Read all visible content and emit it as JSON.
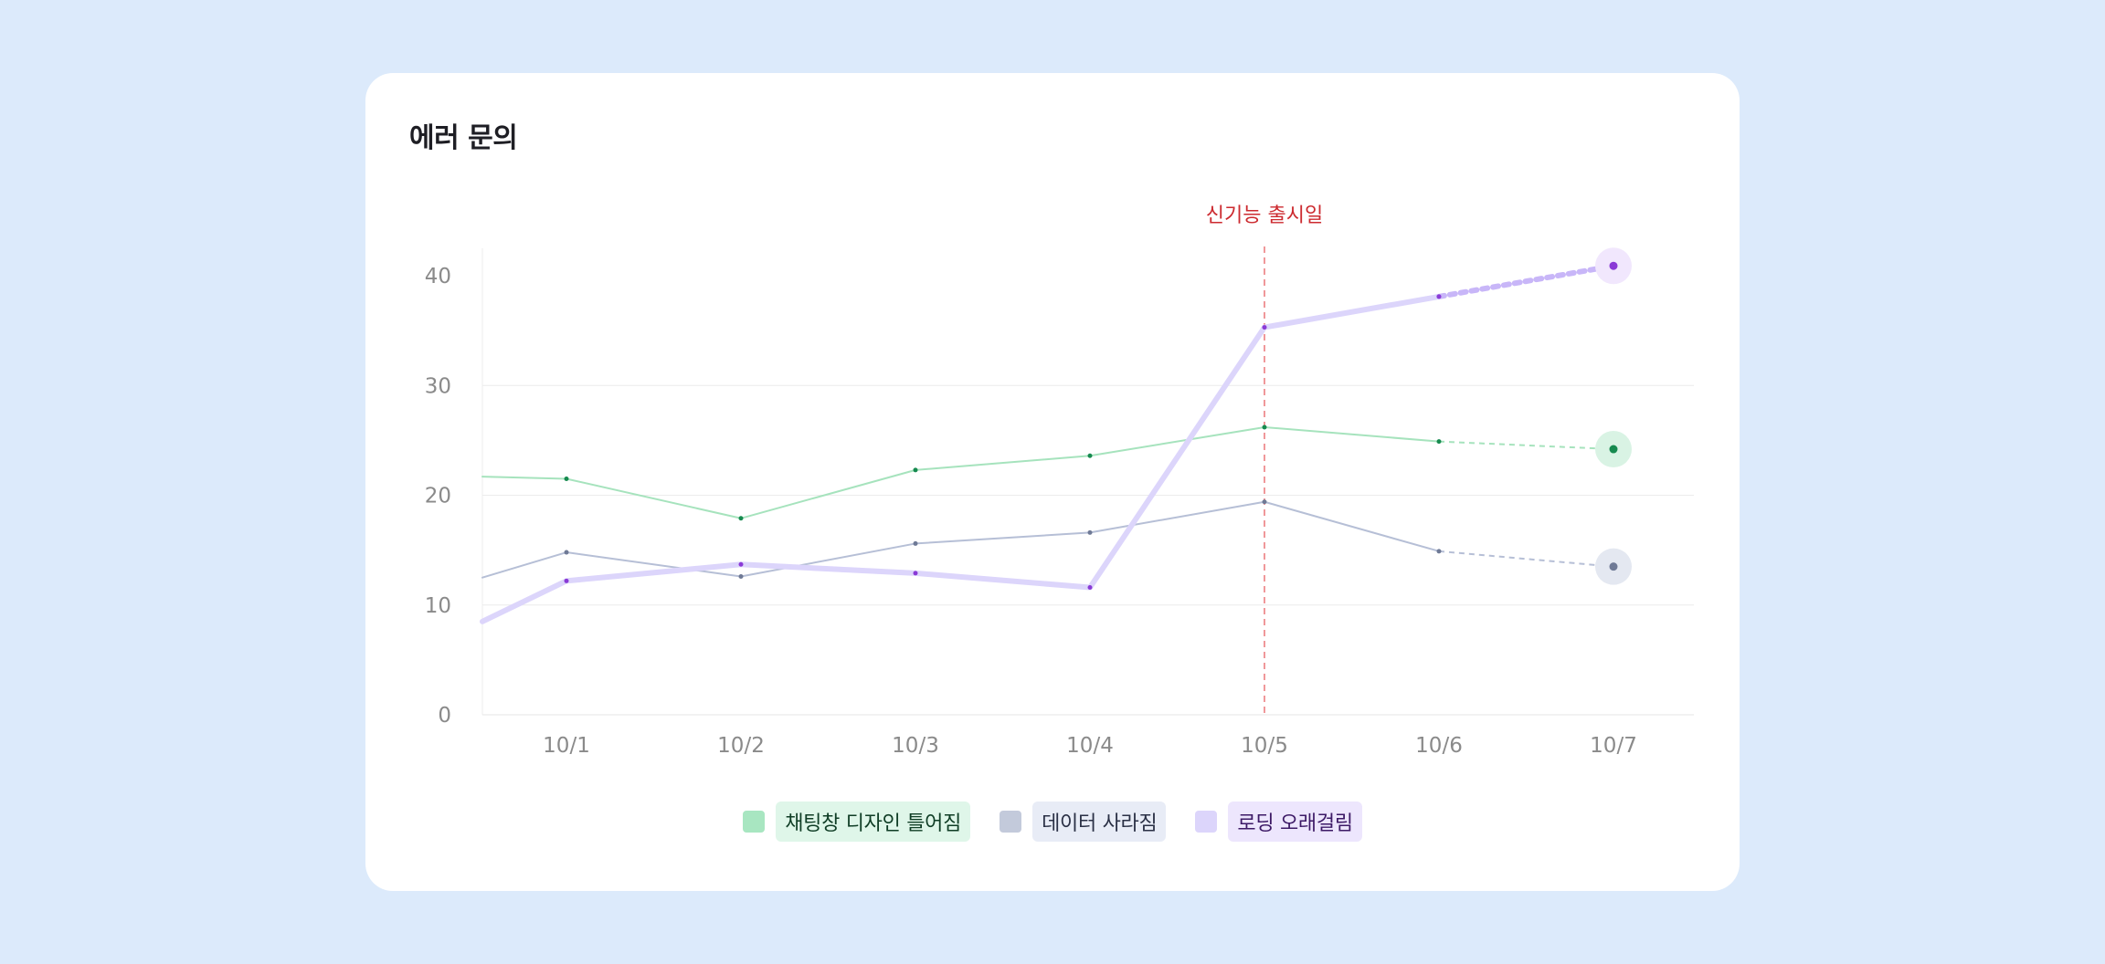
{
  "card": {
    "title": "에러 문의"
  },
  "chart_data": {
    "type": "line",
    "title": "에러 문의",
    "categories": [
      "10/1",
      "10/2",
      "10/3",
      "10/4",
      "10/5",
      "10/6",
      "10/7"
    ],
    "yticks": [
      0,
      10,
      20,
      30,
      40
    ],
    "ylim": [
      0,
      42.5
    ],
    "grid": "horizontal",
    "legend_position": "bottom-center",
    "annotation": {
      "label": "신기능 출시일",
      "x": "10/5",
      "color": "#e5484d"
    },
    "series": [
      {
        "name": "채팅창 디자인 틀어짐",
        "start_value": 21.7,
        "values": [
          21.5,
          17.9,
          22.3,
          23.6,
          26.2,
          24.9,
          24.2
        ],
        "projected_from": "10/6",
        "line_color": "#a6e3bd",
        "dot_color": "#168a4f",
        "halo_color": "#d9f3e4",
        "chip_bg": "#dff6e9",
        "chip_text": "#0f3d25",
        "swatch": "#a8e6c1",
        "width": 2
      },
      {
        "name": "데이터 사라짐",
        "start_value": 12.5,
        "values": [
          14.8,
          12.6,
          15.6,
          16.6,
          19.4,
          14.9,
          13.5
        ],
        "projected_from": "10/6",
        "line_color": "#b6bfd6",
        "dot_color": "#6f7a96",
        "halo_color": "#e4e8f1",
        "chip_bg": "#e8ecf6",
        "chip_text": "#2a3045",
        "swatch": "#c3cadb",
        "width": 2
      },
      {
        "name": "로딩 오래걸림",
        "start_value": 8.5,
        "values": [
          12.2,
          13.7,
          12.9,
          11.6,
          35.3,
          38.1,
          40.9
        ],
        "projected_from": "10/6",
        "line_color": "#dcd5fb",
        "dot_color": "#8a3ad6",
        "halo_color": "#f1e7fd",
        "chip_bg": "#ede6fd",
        "chip_text": "#3d1a66",
        "swatch": "#dcd5fb",
        "width": 6,
        "dash_color": "#c8b6f8"
      }
    ]
  }
}
